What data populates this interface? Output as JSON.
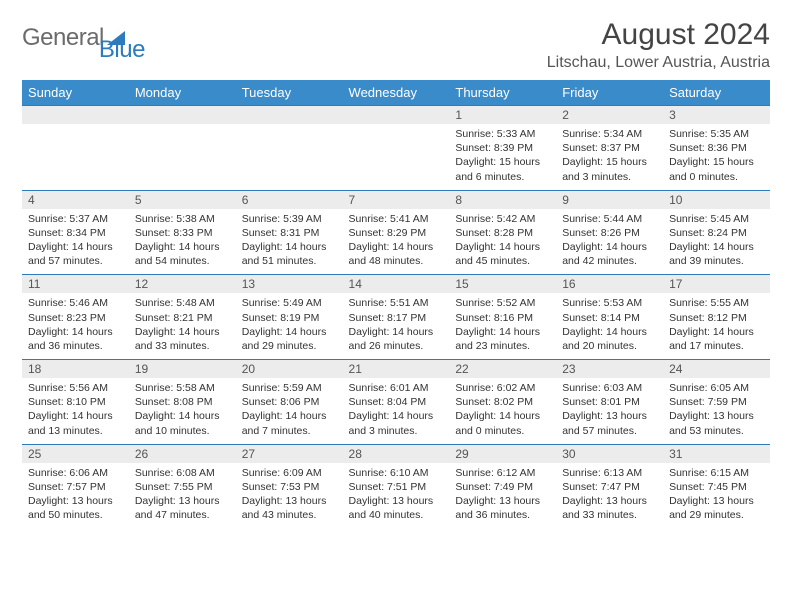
{
  "brand": {
    "part1": "General",
    "part2": "Blue"
  },
  "title": "August 2024",
  "location": "Litschau, Lower Austria, Austria",
  "colors": {
    "header_bg": "#3a8bc9",
    "row_divider": "#2d7bbc",
    "daynum_bg": "#ececec",
    "text": "#333333",
    "brand_gray": "#6b6b6b",
    "brand_blue": "#2d7bbc"
  },
  "typography": {
    "title_fontsize": 30,
    "location_fontsize": 16,
    "header_fontsize": 13,
    "cell_fontsize": 10.5
  },
  "day_headers": [
    "Sunday",
    "Monday",
    "Tuesday",
    "Wednesday",
    "Thursday",
    "Friday",
    "Saturday"
  ],
  "weeks": [
    [
      {
        "n": "",
        "sr": "",
        "ss": "",
        "dl": ""
      },
      {
        "n": "",
        "sr": "",
        "ss": "",
        "dl": ""
      },
      {
        "n": "",
        "sr": "",
        "ss": "",
        "dl": ""
      },
      {
        "n": "",
        "sr": "",
        "ss": "",
        "dl": ""
      },
      {
        "n": "1",
        "sr": "Sunrise: 5:33 AM",
        "ss": "Sunset: 8:39 PM",
        "dl": "Daylight: 15 hours and 6 minutes."
      },
      {
        "n": "2",
        "sr": "Sunrise: 5:34 AM",
        "ss": "Sunset: 8:37 PM",
        "dl": "Daylight: 15 hours and 3 minutes."
      },
      {
        "n": "3",
        "sr": "Sunrise: 5:35 AM",
        "ss": "Sunset: 8:36 PM",
        "dl": "Daylight: 15 hours and 0 minutes."
      }
    ],
    [
      {
        "n": "4",
        "sr": "Sunrise: 5:37 AM",
        "ss": "Sunset: 8:34 PM",
        "dl": "Daylight: 14 hours and 57 minutes."
      },
      {
        "n": "5",
        "sr": "Sunrise: 5:38 AM",
        "ss": "Sunset: 8:33 PM",
        "dl": "Daylight: 14 hours and 54 minutes."
      },
      {
        "n": "6",
        "sr": "Sunrise: 5:39 AM",
        "ss": "Sunset: 8:31 PM",
        "dl": "Daylight: 14 hours and 51 minutes."
      },
      {
        "n": "7",
        "sr": "Sunrise: 5:41 AM",
        "ss": "Sunset: 8:29 PM",
        "dl": "Daylight: 14 hours and 48 minutes."
      },
      {
        "n": "8",
        "sr": "Sunrise: 5:42 AM",
        "ss": "Sunset: 8:28 PM",
        "dl": "Daylight: 14 hours and 45 minutes."
      },
      {
        "n": "9",
        "sr": "Sunrise: 5:44 AM",
        "ss": "Sunset: 8:26 PM",
        "dl": "Daylight: 14 hours and 42 minutes."
      },
      {
        "n": "10",
        "sr": "Sunrise: 5:45 AM",
        "ss": "Sunset: 8:24 PM",
        "dl": "Daylight: 14 hours and 39 minutes."
      }
    ],
    [
      {
        "n": "11",
        "sr": "Sunrise: 5:46 AM",
        "ss": "Sunset: 8:23 PM",
        "dl": "Daylight: 14 hours and 36 minutes."
      },
      {
        "n": "12",
        "sr": "Sunrise: 5:48 AM",
        "ss": "Sunset: 8:21 PM",
        "dl": "Daylight: 14 hours and 33 minutes."
      },
      {
        "n": "13",
        "sr": "Sunrise: 5:49 AM",
        "ss": "Sunset: 8:19 PM",
        "dl": "Daylight: 14 hours and 29 minutes."
      },
      {
        "n": "14",
        "sr": "Sunrise: 5:51 AM",
        "ss": "Sunset: 8:17 PM",
        "dl": "Daylight: 14 hours and 26 minutes."
      },
      {
        "n": "15",
        "sr": "Sunrise: 5:52 AM",
        "ss": "Sunset: 8:16 PM",
        "dl": "Daylight: 14 hours and 23 minutes."
      },
      {
        "n": "16",
        "sr": "Sunrise: 5:53 AM",
        "ss": "Sunset: 8:14 PM",
        "dl": "Daylight: 14 hours and 20 minutes."
      },
      {
        "n": "17",
        "sr": "Sunrise: 5:55 AM",
        "ss": "Sunset: 8:12 PM",
        "dl": "Daylight: 14 hours and 17 minutes."
      }
    ],
    [
      {
        "n": "18",
        "sr": "Sunrise: 5:56 AM",
        "ss": "Sunset: 8:10 PM",
        "dl": "Daylight: 14 hours and 13 minutes."
      },
      {
        "n": "19",
        "sr": "Sunrise: 5:58 AM",
        "ss": "Sunset: 8:08 PM",
        "dl": "Daylight: 14 hours and 10 minutes."
      },
      {
        "n": "20",
        "sr": "Sunrise: 5:59 AM",
        "ss": "Sunset: 8:06 PM",
        "dl": "Daylight: 14 hours and 7 minutes."
      },
      {
        "n": "21",
        "sr": "Sunrise: 6:01 AM",
        "ss": "Sunset: 8:04 PM",
        "dl": "Daylight: 14 hours and 3 minutes."
      },
      {
        "n": "22",
        "sr": "Sunrise: 6:02 AM",
        "ss": "Sunset: 8:02 PM",
        "dl": "Daylight: 14 hours and 0 minutes."
      },
      {
        "n": "23",
        "sr": "Sunrise: 6:03 AM",
        "ss": "Sunset: 8:01 PM",
        "dl": "Daylight: 13 hours and 57 minutes."
      },
      {
        "n": "24",
        "sr": "Sunrise: 6:05 AM",
        "ss": "Sunset: 7:59 PM",
        "dl": "Daylight: 13 hours and 53 minutes."
      }
    ],
    [
      {
        "n": "25",
        "sr": "Sunrise: 6:06 AM",
        "ss": "Sunset: 7:57 PM",
        "dl": "Daylight: 13 hours and 50 minutes."
      },
      {
        "n": "26",
        "sr": "Sunrise: 6:08 AM",
        "ss": "Sunset: 7:55 PM",
        "dl": "Daylight: 13 hours and 47 minutes."
      },
      {
        "n": "27",
        "sr": "Sunrise: 6:09 AM",
        "ss": "Sunset: 7:53 PM",
        "dl": "Daylight: 13 hours and 43 minutes."
      },
      {
        "n": "28",
        "sr": "Sunrise: 6:10 AM",
        "ss": "Sunset: 7:51 PM",
        "dl": "Daylight: 13 hours and 40 minutes."
      },
      {
        "n": "29",
        "sr": "Sunrise: 6:12 AM",
        "ss": "Sunset: 7:49 PM",
        "dl": "Daylight: 13 hours and 36 minutes."
      },
      {
        "n": "30",
        "sr": "Sunrise: 6:13 AM",
        "ss": "Sunset: 7:47 PM",
        "dl": "Daylight: 13 hours and 33 minutes."
      },
      {
        "n": "31",
        "sr": "Sunrise: 6:15 AM",
        "ss": "Sunset: 7:45 PM",
        "dl": "Daylight: 13 hours and 29 minutes."
      }
    ]
  ]
}
